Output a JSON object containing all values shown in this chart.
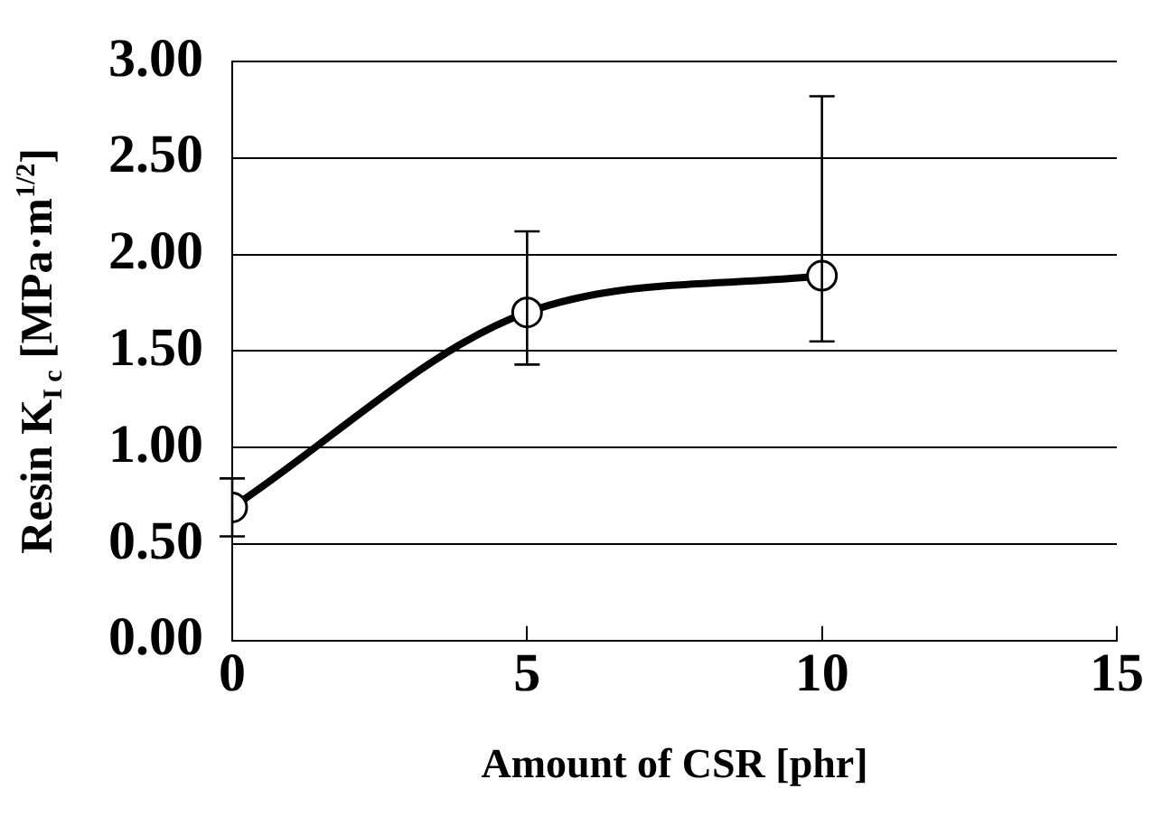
{
  "chart_data": {
    "type": "line",
    "xlabel": "Amount of CSR [phr]",
    "ylabel": "Resin K$_{I c}$ [MPa·m$^{1/2}$]",
    "x": [
      0,
      5,
      10
    ],
    "series": [
      {
        "color": "#000000",
        "values": [
          0.69,
          1.7,
          1.89
        ],
        "errors": [
          [
            0.54,
            0.84
          ],
          [
            1.43,
            2.12
          ],
          [
            1.55,
            2.82
          ]
        ]
      }
    ],
    "xlim": [
      0,
      15
    ],
    "xticks": [
      0,
      5,
      10,
      15
    ],
    "ylim": [
      0,
      3
    ],
    "yticks": [
      {
        "value": 0,
        "label": "0.00"
      },
      {
        "value": 0.5,
        "label": "0.50"
      },
      {
        "value": 1,
        "label": "1.00"
      },
      {
        "value": 1.5,
        "label": "1.50"
      },
      {
        "value": 2,
        "label": "2.00"
      },
      {
        "value": 2.5,
        "label": "2.50"
      },
      {
        "value": 3,
        "label": "3.00"
      }
    ],
    "grid": "y",
    "marker": "circle",
    "line_style": "solid",
    "legend": false
  }
}
